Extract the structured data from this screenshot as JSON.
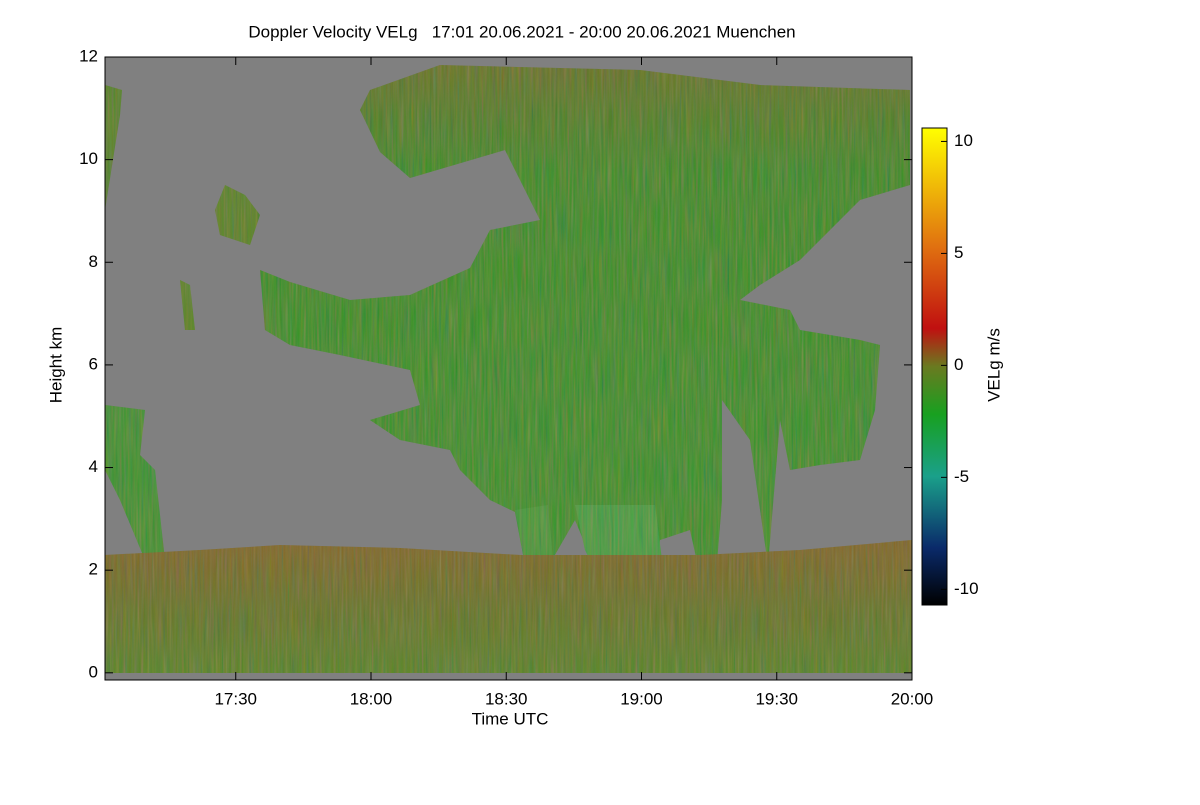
{
  "chart_data": {
    "type": "heatmap",
    "title": "Doppler Velocity VELg   17:01 20.06.2021 - 20:00 20.06.2021 Muenchen",
    "xlabel": "Time UTC",
    "ylabel": "Height km",
    "xlim": [
      1,
      180
    ],
    "xticks": [
      {
        "value": 30,
        "label": "17:30"
      },
      {
        "value": 60,
        "label": "18:00"
      },
      {
        "value": 90,
        "label": "18:30"
      },
      {
        "value": 120,
        "label": "19:00"
      },
      {
        "value": 150,
        "label": "19:30"
      },
      {
        "value": 180,
        "label": "20:00"
      }
    ],
    "ylim": [
      -0.14,
      12
    ],
    "yticks": [
      0,
      2,
      4,
      6,
      8,
      10,
      12
    ],
    "colorbar": {
      "label": "VELg m/s",
      "lim": [
        -10.7,
        10.6
      ],
      "ticks": [
        -10,
        -5,
        0,
        5,
        10
      ]
    }
  }
}
